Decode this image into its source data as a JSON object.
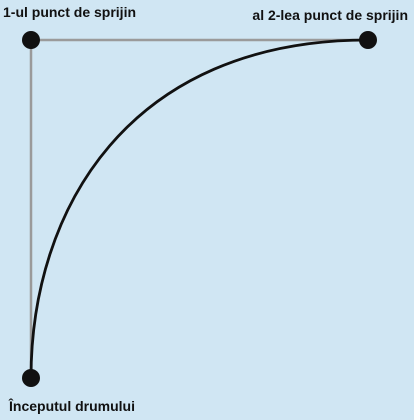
{
  "labels": {
    "control_point_1": "1-ul punct de sprijin",
    "control_point_2": "al 2-lea punct de sprijin",
    "path_start": "Începutul drumului"
  },
  "colors": {
    "background": "#d0e6f3",
    "guide_lines": "#9a9a9a",
    "curve": "#111111",
    "points": "#111111",
    "text": "#111111"
  }
}
